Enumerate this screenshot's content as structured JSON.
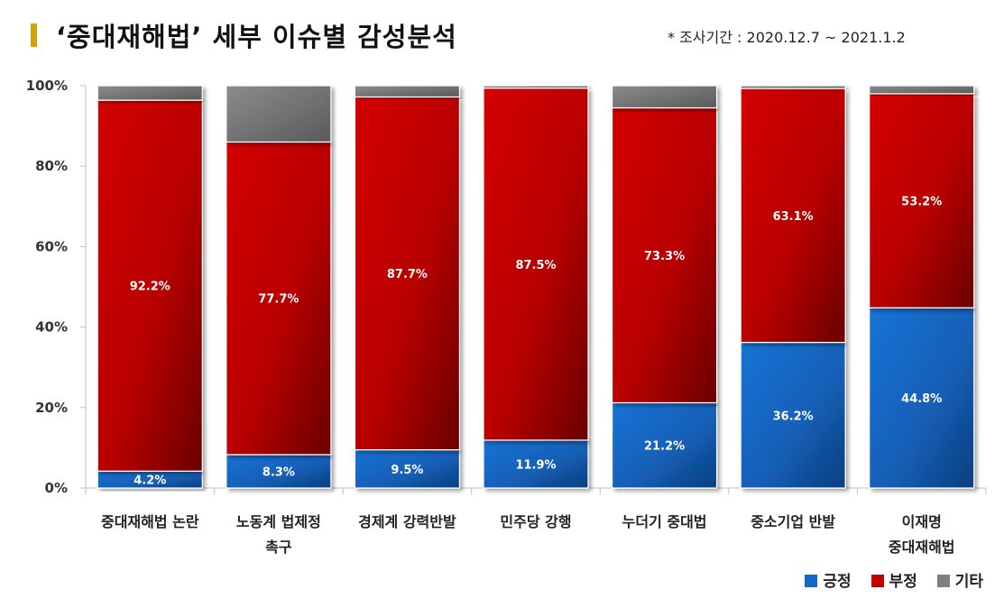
{
  "header": {
    "title": "‘중대재해법’ 세부 이슈별 감성분석",
    "period": "* 조사기간 : 2020.12.7 ~ 2021.1.2"
  },
  "colors": {
    "positive": "#1666c4",
    "negative": "#c00000",
    "other": "#7f7f7f",
    "accent": "#d4a30c"
  },
  "chart_data": {
    "type": "bar",
    "stacked": true,
    "percent": true,
    "categories": [
      [
        "중대재해법 논란"
      ],
      [
        "노동계 법제정",
        "촉구"
      ],
      [
        "경제계 강력반발"
      ],
      [
        "민주당 강행"
      ],
      [
        "누더기 중대법"
      ],
      [
        "중소기업 반발"
      ],
      [
        "이재명",
        "중대재해법"
      ]
    ],
    "series": [
      {
        "name": "긍정",
        "values": [
          4.2,
          8.3,
          9.5,
          11.9,
          21.2,
          36.2,
          44.8
        ],
        "labels": [
          "4.2%",
          "8.3%",
          "9.5%",
          "11.9%",
          "21.2%",
          "36.2%",
          "44.8%"
        ]
      },
      {
        "name": "부정",
        "values": [
          92.2,
          77.7,
          87.7,
          87.5,
          73.3,
          63.1,
          53.2
        ],
        "labels": [
          "92.2%",
          "77.7%",
          "87.7%",
          "87.5%",
          "73.3%",
          "63.1%",
          "53.2%"
        ]
      },
      {
        "name": "기타",
        "values": [
          3.6,
          14.0,
          2.8,
          0.6,
          5.5,
          0.7,
          2.0
        ]
      }
    ],
    "ylim": [
      0,
      100
    ],
    "yticks": [
      "0%",
      "20%",
      "40%",
      "60%",
      "80%",
      "100%"
    ],
    "legend": "bottom-right"
  }
}
